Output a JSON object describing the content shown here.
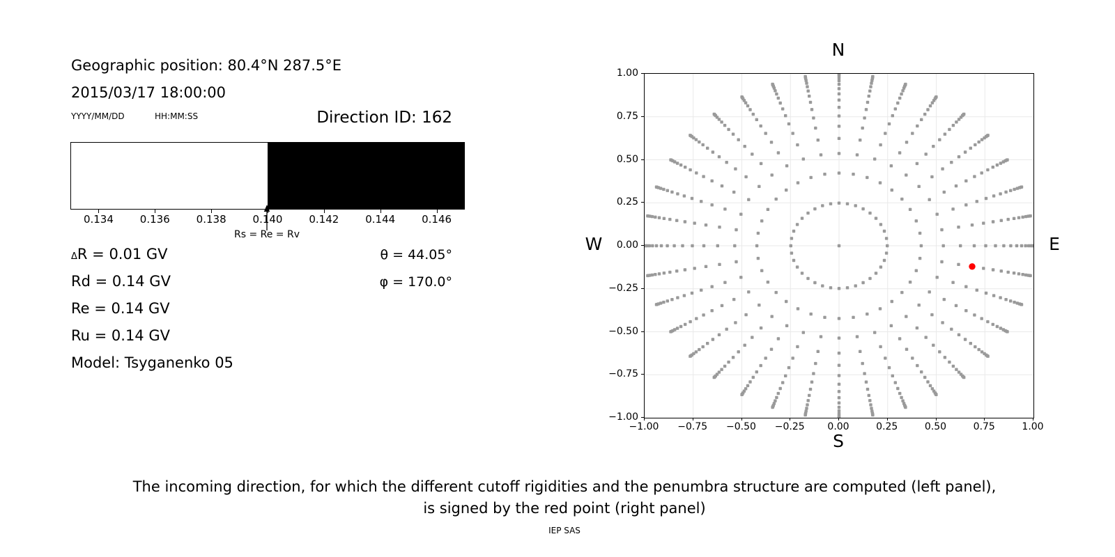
{
  "header": {
    "position": "Geographic position: 80.4°N 287.5°E",
    "datetime": "2015/03/17 18:00:00",
    "date_format": "YYYY/MM/DD",
    "time_format": "HH:MM:SS",
    "direction_id": "Direction ID: 162"
  },
  "params": {
    "dR_delta": "Δ",
    "dR": "R = 0.01 GV",
    "Rd": "Rd = 0.14 GV",
    "Re": "Re = 0.14 GV",
    "Ru": "Ru = 0.14 GV",
    "model": "Model: Tsyganenko 05",
    "theta": "θ = 44.05°",
    "phi": "φ = 170.0°"
  },
  "caption": {
    "line1": "The incoming direction, for which the different cutoff rigidities and the penumbra structure are computed (left panel),",
    "line2": "is signed by the red point (right panel)",
    "credit": "IEP SAS"
  },
  "chart_data": [
    {
      "type": "bar",
      "title": "",
      "xlabel": "Rigidity (GV)",
      "xmin": 0.133,
      "xmax": 0.147,
      "regions": [
        {
          "from": 0.133,
          "to": 0.14,
          "color": "#ffffff"
        },
        {
          "from": 0.14,
          "to": 0.147,
          "color": "#000000"
        }
      ],
      "ticks": [
        0.134,
        0.136,
        0.138,
        0.14,
        0.142,
        0.144,
        0.146
      ],
      "tick_labels": [
        "0.134",
        "0.136",
        "0.138",
        "0.140",
        "0.142",
        "0.144",
        "0.146"
      ],
      "arrow": {
        "x": 0.14,
        "label": "Rs = Re = Rv"
      }
    },
    {
      "type": "scatter",
      "compass": {
        "n": "N",
        "e": "E",
        "s": "S",
        "w": "W"
      },
      "xlim": [
        -1,
        1
      ],
      "ylim": [
        -1,
        1
      ],
      "grid": true,
      "grid_color": "#e9e9e9",
      "xticks": [
        -1,
        -0.75,
        -0.5,
        -0.25,
        0,
        0.25,
        0.5,
        0.75,
        1
      ],
      "yticks": [
        -1,
        -0.75,
        -0.5,
        -0.25,
        0,
        0.25,
        0.5,
        0.75,
        1
      ],
      "xtick_labels": [
        "−1.00",
        "−0.75",
        "−0.50",
        "−0.25",
        "0.00",
        "0.25",
        "0.50",
        "0.75",
        "1.00"
      ],
      "ytick_labels": [
        "−1.00",
        "−0.75",
        "−0.50",
        "−0.25",
        "0.00",
        "0.25",
        "0.50",
        "0.75",
        "1.00"
      ],
      "dot_color": "#9a9a9a",
      "azimuth_count": 36,
      "azimuth_step_deg": 10,
      "ring_radii": [
        0.248,
        0.4227,
        0.5367,
        0.6242,
        0.6953,
        0.7546,
        0.8047,
        0.8472,
        0.8833,
        0.9138,
        0.939,
        0.9596,
        0.9758,
        0.9877,
        0.9956,
        0.9995
      ],
      "center_point": {
        "x": 0,
        "y": 0
      },
      "red_point": {
        "x": 0.6847,
        "y": -0.1207,
        "theta_deg": 44.05,
        "phi_deg": 170.0,
        "color": "#ff0000"
      }
    }
  ]
}
